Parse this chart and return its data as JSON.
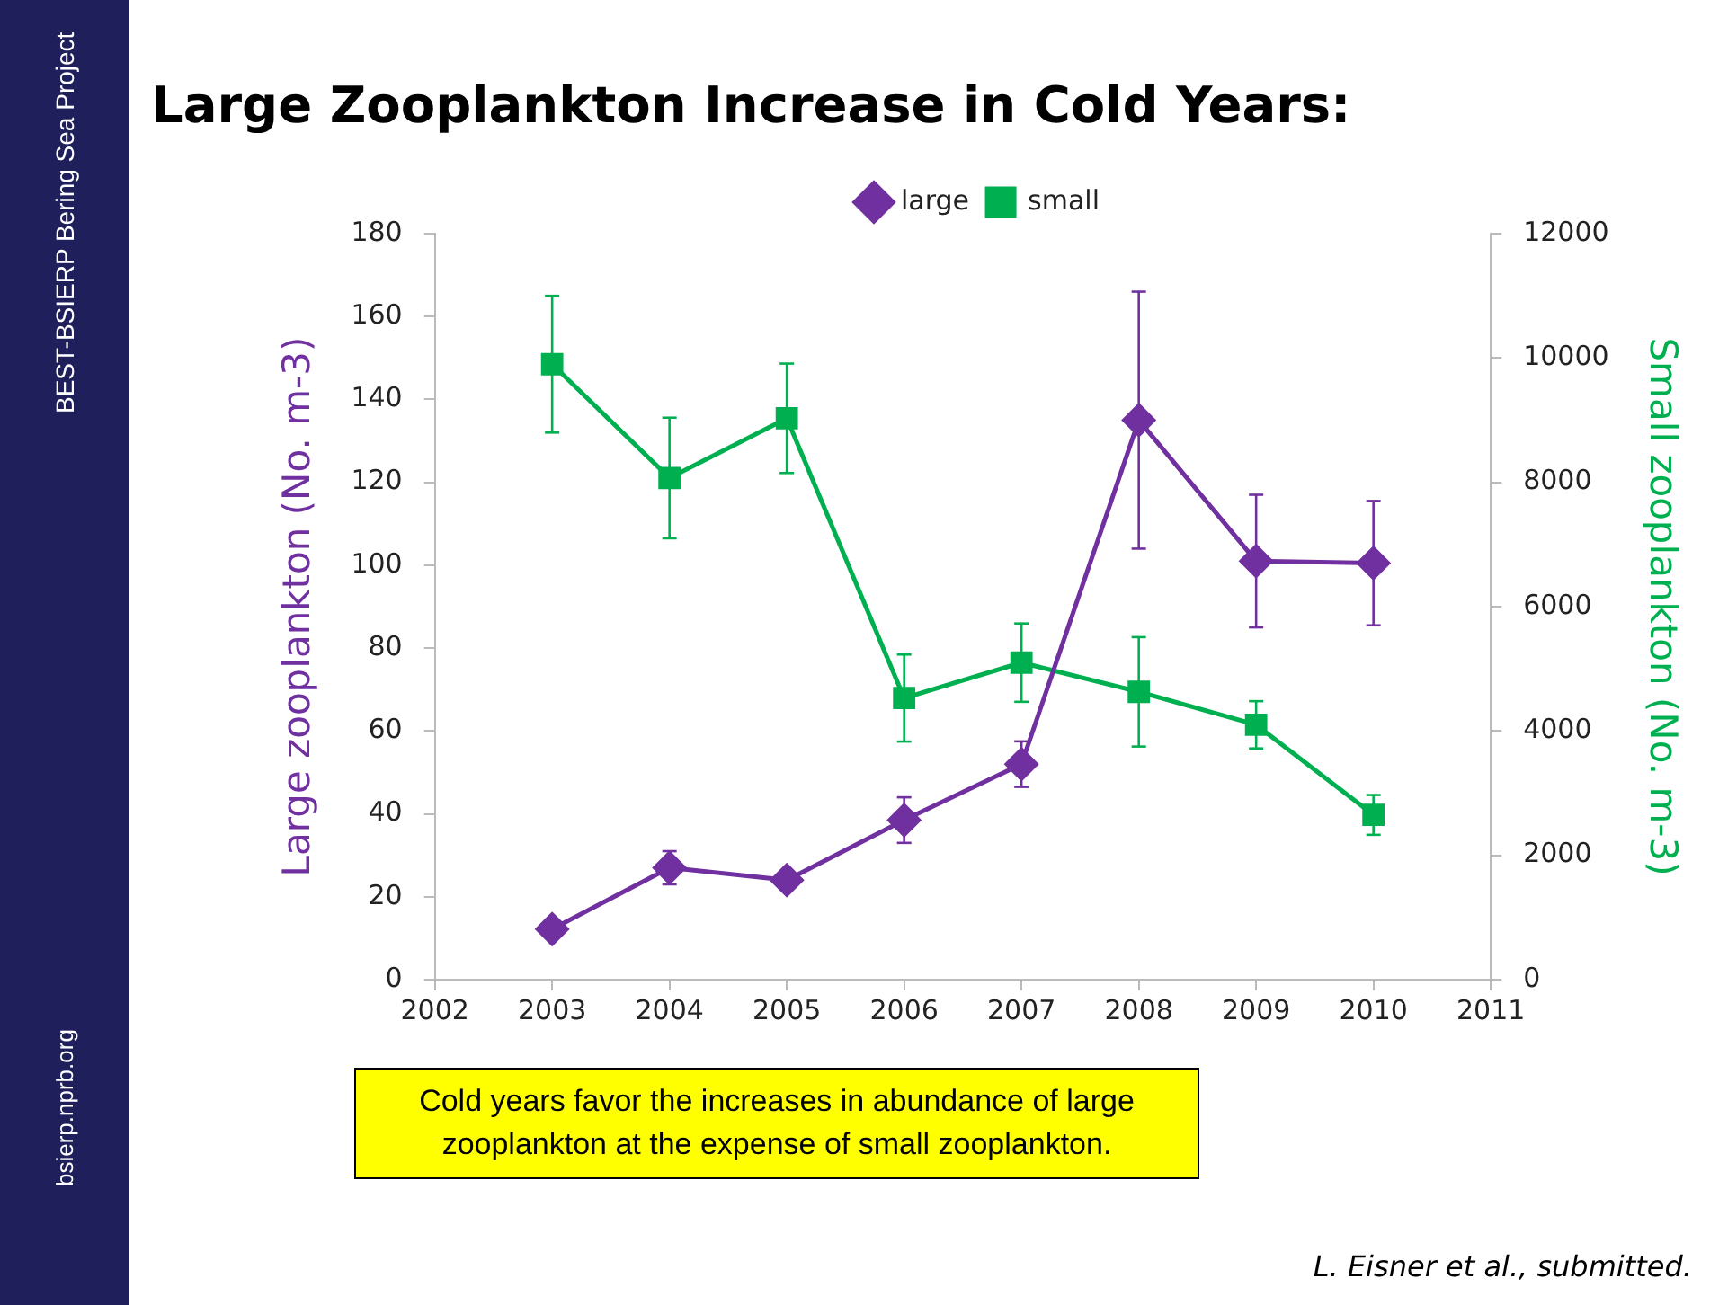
{
  "chart_data": {
    "type": "line",
    "title": "Large Zooplankton Increase in Cold Years:",
    "ylabel": "Large zooplankton (No. m-3)",
    "y2label": "Small zooplankton (No. m-3)",
    "annotations": [
      "Cold years favor the increases in abundance of large zooplankton at the expense of small zooplankton.",
      "L. Eisner et al., submitted.",
      "BEST-BSIERP Bering Sea Project",
      "bsierp.nprb.org"
    ],
    "x": [
      2003,
      2004,
      2005,
      2006,
      2007,
      2008,
      2009,
      2010
    ],
    "series": [
      {
        "name": "large",
        "color": "#7030a0",
        "marker": "diamond",
        "values": [
          12.2,
          27,
          24,
          38.5,
          52,
          135,
          101,
          100.5
        ],
        "errors": [
          null,
          4,
          null,
          5.5,
          5.5,
          31,
          16,
          15
        ]
      },
      {
        "name": "small",
        "color": "#00b050",
        "marker": "square",
        "axis": "y2",
        "values": [
          9900,
          8070,
          9030,
          4530,
          5100,
          4630,
          4100,
          2650
        ],
        "errors": [
          1100,
          970,
          880,
          700,
          630,
          880,
          380,
          320
        ]
      }
    ],
    "xlim": [
      2002,
      2011
    ],
    "xticks": [
      2002,
      2003,
      2004,
      2005,
      2006,
      2007,
      2008,
      2009,
      2010,
      2011
    ],
    "ylim": [
      0,
      180
    ],
    "yticks": [
      0,
      20,
      40,
      60,
      80,
      100,
      120,
      140,
      160,
      180
    ],
    "y2lim": [
      0,
      12000
    ],
    "y2ticks": [
      0,
      2000,
      4000,
      6000,
      8000,
      10000,
      12000
    ],
    "grid": false,
    "legend": "top",
    "line_style": "solid"
  }
}
